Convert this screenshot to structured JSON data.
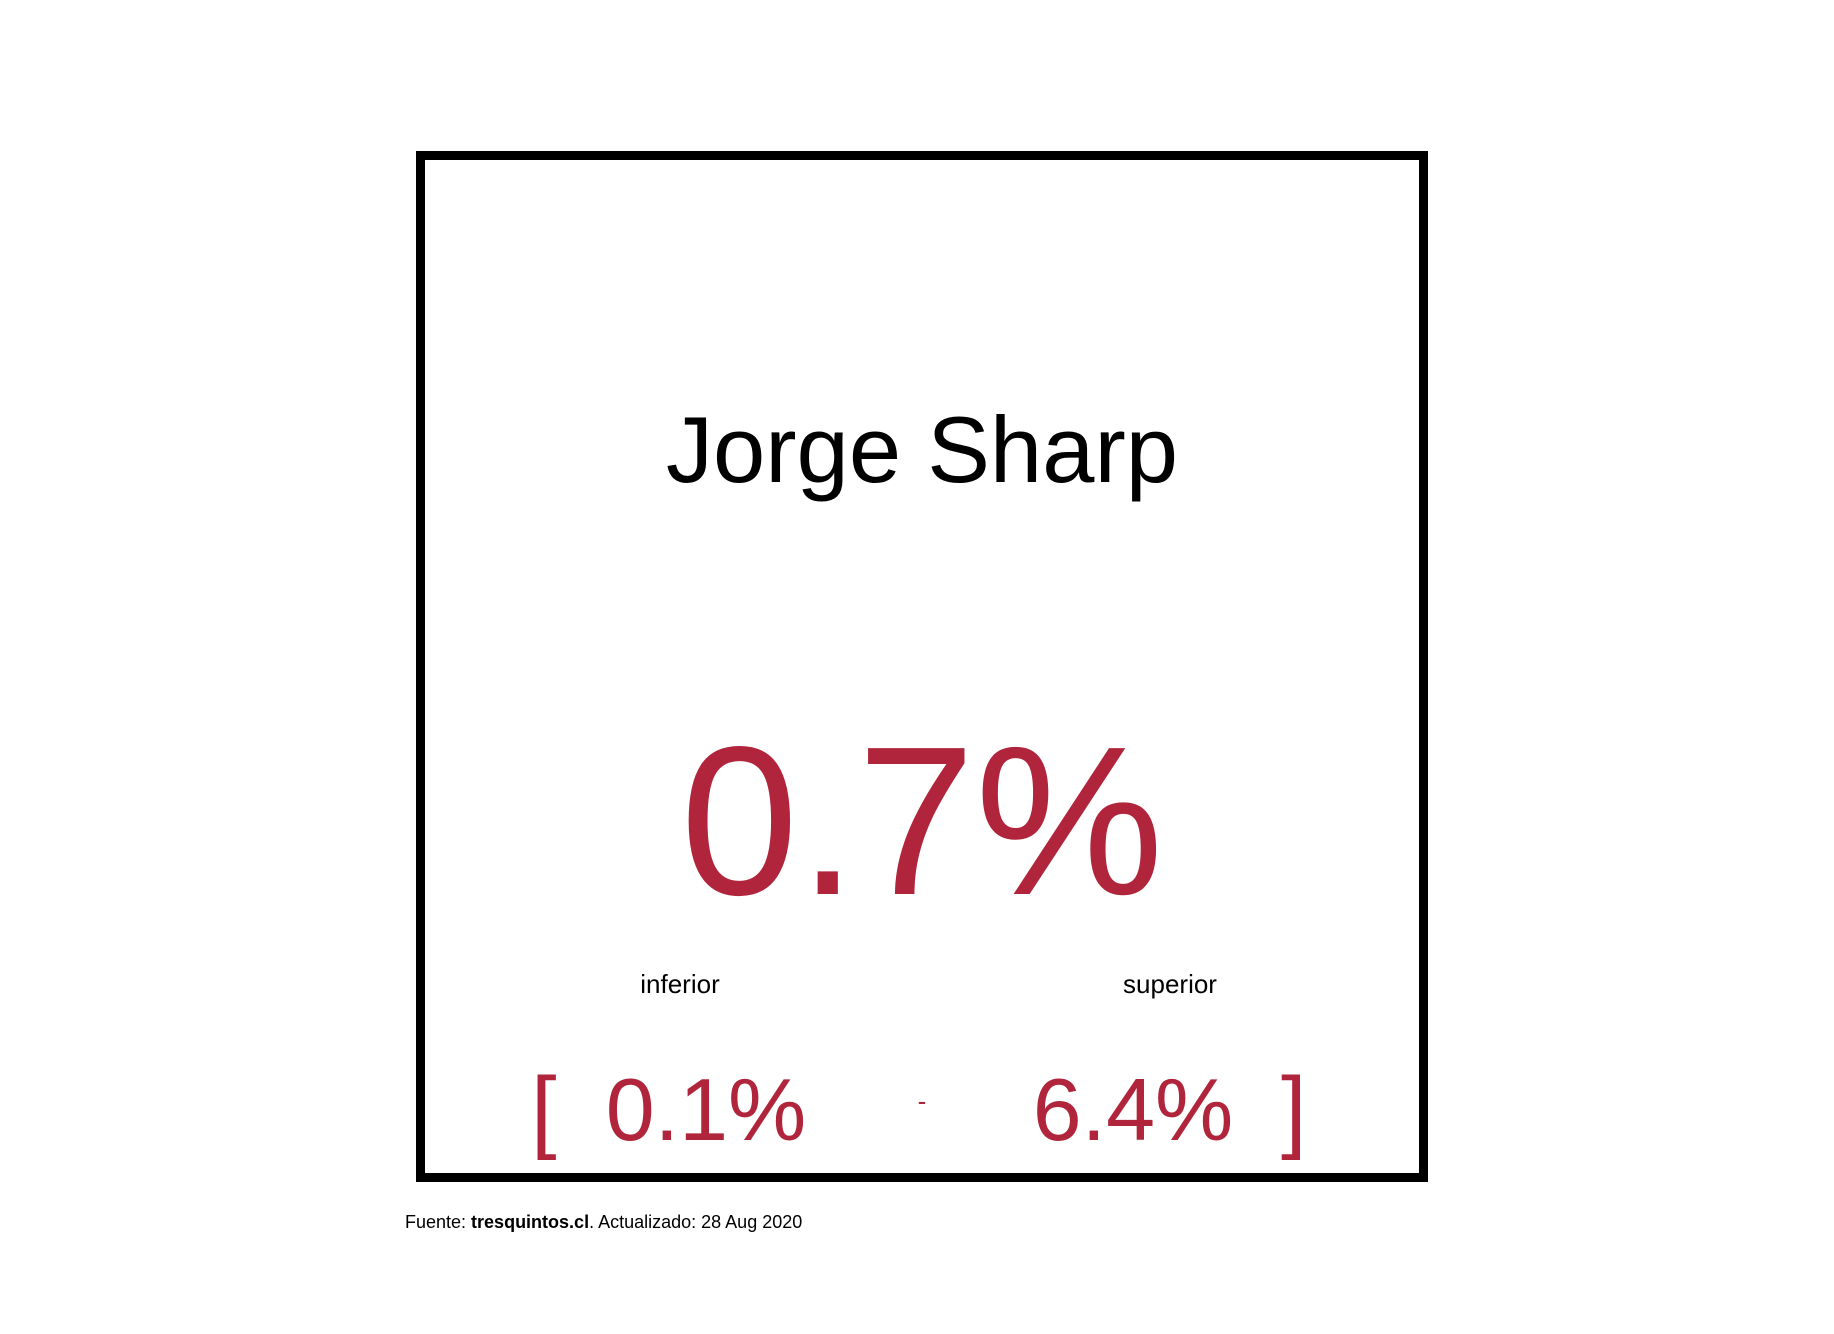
{
  "card": {
    "name": "Jorge Sharp",
    "value": "0.7%",
    "lower_label": "inferior",
    "upper_label": "superior",
    "open_bracket": "[",
    "lower_value": "0.1%",
    "separator": "-",
    "upper_value": "6.4%",
    "close_bracket": "]"
  },
  "footer": {
    "source_prefix": "Fuente: ",
    "source_name": "tresquintos.cl",
    "updated_text": ". Actualizado: 28 Aug 2020"
  },
  "colors": {
    "accent": "#b0253b",
    "text": "#000000",
    "border": "#000000",
    "background": "#ffffff"
  }
}
